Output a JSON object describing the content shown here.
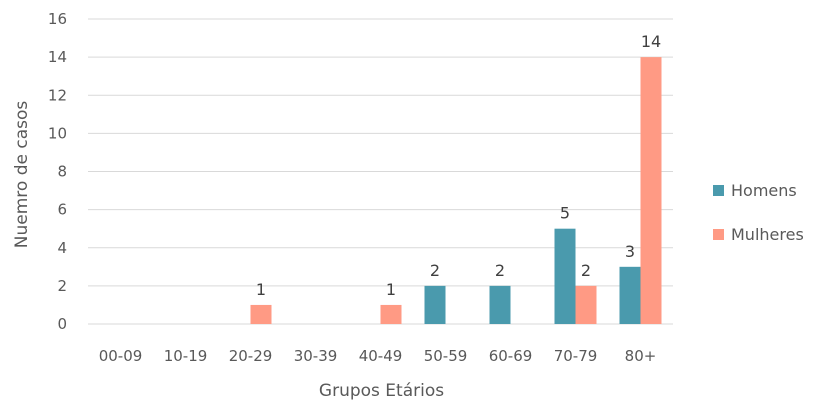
{
  "chart_data": {
    "type": "bar",
    "title": "",
    "xlabel": "Grupos Etários",
    "ylabel": "Nuemro de casos",
    "categories": [
      "00-09",
      "10-19",
      "20-29",
      "30-39",
      "40-49",
      "50-59",
      "60-69",
      "70-79",
      "80+"
    ],
    "series": [
      {
        "name": "Homens",
        "color": "#4a9aad",
        "values": [
          0,
          0,
          0,
          0,
          0,
          2,
          2,
          5,
          3
        ]
      },
      {
        "name": "Mulheres",
        "color": "#ff9a84",
        "values": [
          0,
          0,
          1,
          0,
          1,
          0,
          0,
          2,
          14
        ]
      }
    ],
    "ylim": [
      0,
      16
    ],
    "yticks": [
      0,
      2,
      4,
      6,
      8,
      10,
      12,
      14,
      16
    ],
    "grid": true,
    "legend": "right"
  }
}
